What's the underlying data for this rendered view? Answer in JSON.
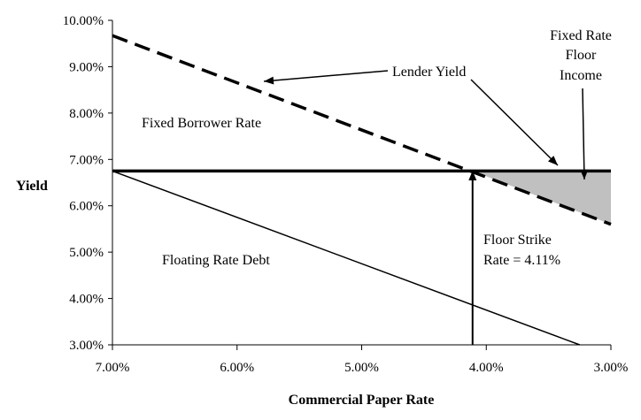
{
  "chart_data": {
    "type": "line",
    "xlabel": "Commercial Paper Rate",
    "ylabel": "Yield",
    "xlim": [
      7.0,
      3.0
    ],
    "ylim": [
      3.0,
      10.0
    ],
    "x_reversed": true,
    "x_ticks": [
      "7.00%",
      "6.00%",
      "5.00%",
      "4.00%",
      "3.00%"
    ],
    "x_tick_values": [
      7,
      6,
      5,
      4,
      3
    ],
    "y_ticks": [
      "3.00%",
      "4.00%",
      "5.00%",
      "6.00%",
      "7.00%",
      "8.00%",
      "9.00%",
      "10.00%"
    ],
    "y_tick_values": [
      3,
      4,
      5,
      6,
      7,
      8,
      9,
      10
    ],
    "series": [
      {
        "name": "Fixed Borrower Rate",
        "style": "solid-thick",
        "x": [
          7.0,
          3.0
        ],
        "y": [
          6.75,
          6.75
        ]
      },
      {
        "name": "Lender Yield",
        "style": "dashed-thick",
        "x": [
          7.0,
          3.0
        ],
        "y": [
          9.67,
          5.6
        ]
      },
      {
        "name": "Floating Rate Debt",
        "style": "solid-thin",
        "x": [
          7.0,
          3.25
        ],
        "y": [
          6.75,
          3.0
        ]
      }
    ],
    "shaded_region": {
      "name": "Fixed Rate Floor Income",
      "color": "#c0c0c0",
      "points": [
        [
          4.11,
          6.75
        ],
        [
          3.0,
          6.75
        ],
        [
          3.0,
          5.6
        ]
      ]
    },
    "floor_strike_x": 4.11,
    "annotations": {
      "fixed_borrower": "Fixed Borrower Rate",
      "lender_yield": "Lender Yield",
      "floating_debt": "Floating Rate Debt",
      "floor_income_lines": [
        "Fixed Rate",
        "Floor",
        "Income"
      ],
      "floor_strike_lines": [
        "Floor Strike",
        "Rate = 4.11%"
      ]
    }
  }
}
